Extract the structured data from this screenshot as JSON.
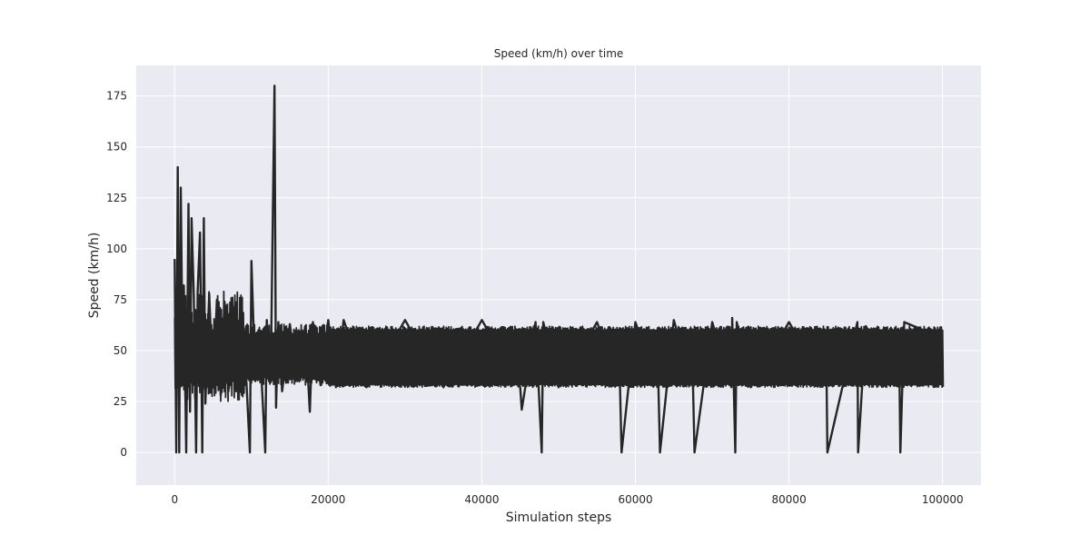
{
  "chart_data": {
    "type": "line",
    "title": "Speed (km/h) over time",
    "xlabel": "Simulation steps",
    "ylabel": "Speed (km/h)",
    "xlim": [
      -5000,
      105000
    ],
    "ylim": [
      -16,
      190
    ],
    "xticks": [
      0,
      20000,
      40000,
      60000,
      80000,
      100000
    ],
    "yticks": [
      0,
      25,
      50,
      75,
      100,
      125,
      150,
      175
    ],
    "grid": true,
    "legend": "none",
    "colors": {
      "background": "#eaeaf2",
      "grid": "#ffffff",
      "line": "#262626"
    },
    "series": [
      {
        "values_note": "approximate trace",
        "x": [
          0,
          200,
          400,
          600,
          800,
          1000,
          1200,
          1500,
          1800,
          2000,
          2200,
          2500,
          2800,
          3000,
          3300,
          3600,
          3800,
          4000,
          4500,
          5000,
          5500,
          6000,
          6500,
          7000,
          7500,
          8000,
          9000,
          9800,
          10000,
          10500,
          11000,
          11800,
          12000,
          12500,
          13000,
          13200,
          13500,
          14000,
          15000,
          16000,
          17000,
          17600,
          18000,
          19000,
          20000,
          21000,
          22000,
          25000,
          30000,
          35000,
          40000,
          45000,
          45200,
          47000,
          47800,
          48000,
          50000,
          55000,
          58000,
          58200,
          60000,
          63000,
          63200,
          65000,
          67500,
          67700,
          70000,
          72500,
          72600,
          73000,
          73200,
          75000,
          80000,
          84900,
          85000,
          88900,
          89000,
          90000,
          94400,
          94500,
          95000,
          100000
        ],
        "y": [
          95,
          0,
          140,
          0,
          130,
          60,
          82,
          0,
          122,
          20,
          115,
          76,
          0,
          79,
          108,
          0,
          115,
          24,
          78,
          32,
          75,
          28,
          74,
          30,
          76,
          30,
          61,
          0,
          94,
          35,
          60,
          0,
          65,
          35,
          180,
          22,
          64,
          30,
          63,
          35,
          62,
          20,
          64,
          33,
          65,
          32,
          65,
          32,
          65,
          32,
          65,
          32,
          21,
          64,
          0,
          64,
          32,
          64,
          32,
          0,
          64,
          32,
          0,
          65,
          32,
          0,
          64,
          32,
          66,
          0,
          64,
          32,
          64,
          32,
          0,
          64,
          0,
          62,
          32,
          0,
          64,
          56
        ]
      }
    ]
  }
}
